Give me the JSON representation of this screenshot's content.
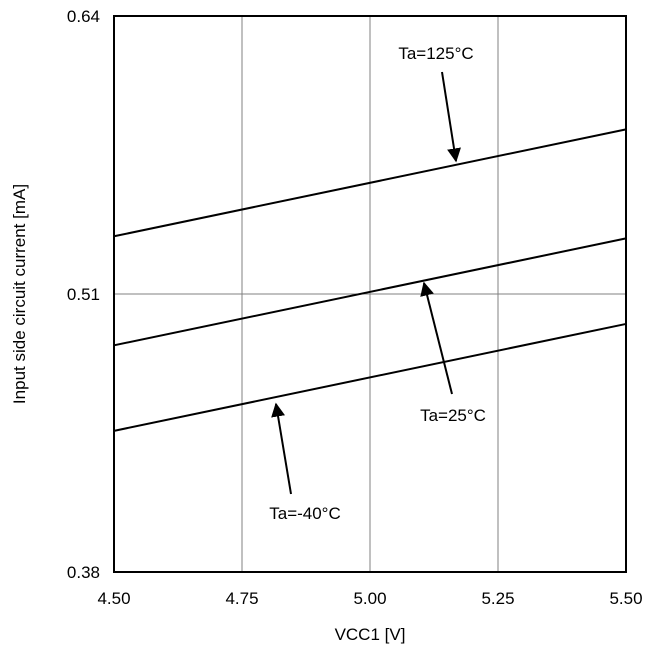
{
  "chart_data": {
    "type": "line",
    "title": "",
    "xlabel": "VCC1 [V]",
    "ylabel": "Input side circuit current [mA]",
    "xlim": [
      4.5,
      5.5
    ],
    "ylim": [
      0.38,
      0.64
    ],
    "x_ticks": [
      "4.50",
      "4.75",
      "5.00",
      "5.25",
      "5.50"
    ],
    "y_ticks": [
      "0.38",
      "0.51",
      "0.64"
    ],
    "grid": true,
    "series": [
      {
        "name": "Ta=125°C",
        "x": [
          4.5,
          5.5
        ],
        "y": [
          0.537,
          0.587
        ]
      },
      {
        "name": "Ta=25°C",
        "x": [
          4.5,
          5.5
        ],
        "y": [
          0.486,
          0.536
        ]
      },
      {
        "name": "Ta=-40°C",
        "x": [
          4.5,
          5.5
        ],
        "y": [
          0.446,
          0.496
        ]
      }
    ],
    "annotations": [
      {
        "text": "Ta=125°C",
        "series": 0
      },
      {
        "text": "Ta=25°C",
        "series": 1
      },
      {
        "text": "Ta=-40°C",
        "series": 2
      }
    ],
    "colors": {
      "line": "#000000",
      "grid": "#808080",
      "background": "#ffffff"
    }
  }
}
